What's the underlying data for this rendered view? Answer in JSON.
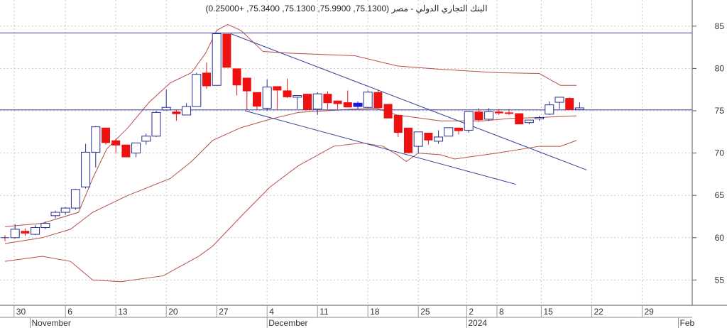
{
  "chart_data": {
    "type": "candlestick",
    "title": "البنك التجاري الدولي - مصر (75.1300, 75.9900, 75.1300, 75.3400, +0.25000)",
    "ylim": [
      52.5,
      87.5
    ],
    "yticks": [
      55,
      60,
      65,
      70,
      75,
      80,
      85
    ],
    "grid": true,
    "day_ticks": [
      {
        "label": "30",
        "x_index": 0.9
      },
      {
        "label": "6",
        "x_index": 6
      },
      {
        "label": "13",
        "x_index": 11
      },
      {
        "label": "20",
        "x_index": 16
      },
      {
        "label": "27",
        "x_index": 21
      },
      {
        "label": "4",
        "x_index": 26
      },
      {
        "label": "11",
        "x_index": 31
      },
      {
        "label": "18",
        "x_index": 36
      },
      {
        "label": "25",
        "x_index": 41
      },
      {
        "label": "2",
        "x_index": 45.8
      },
      {
        "label": "8",
        "x_index": 48.8
      },
      {
        "label": "15",
        "x_index": 53.2
      },
      {
        "label": "22",
        "x_index": 58.2
      },
      {
        "label": "29",
        "x_index": 63.2
      }
    ],
    "month_ticks": [
      {
        "label": "November",
        "x_index": 2.5
      },
      {
        "label": "December",
        "x_index": 26
      },
      {
        "label": "2024",
        "x_index": 45.8
      },
      {
        "label": "Feb",
        "x_index": 66.8
      }
    ],
    "candles": [
      [
        60.0,
        60.3,
        59.6,
        60.0
      ],
      [
        60.0,
        61.6,
        59.9,
        61.0
      ],
      [
        60.8,
        61.1,
        60.2,
        60.5
      ],
      [
        60.4,
        61.5,
        60.3,
        61.2
      ],
      [
        61.2,
        61.9,
        61.0,
        61.7
      ],
      [
        62.6,
        63.2,
        62.3,
        63.0
      ],
      [
        63.0,
        63.6,
        62.7,
        63.5
      ],
      [
        63.5,
        65.8,
        63.3,
        65.7
      ],
      [
        66.0,
        71.1,
        65.8,
        70.1
      ],
      [
        70.1,
        73.2,
        68.3,
        73.1
      ],
      [
        73.0,
        73.0,
        71.0,
        71.2
      ],
      [
        71.5,
        71.7,
        70.0,
        70.9
      ],
      [
        71.0,
        71.0,
        69.5,
        69.5
      ],
      [
        70.0,
        71.2,
        69.5,
        71.2
      ],
      [
        71.4,
        72.3,
        71.0,
        72.0
      ],
      [
        72.0,
        75.0,
        71.9,
        74.8
      ],
      [
        75.1,
        77.5,
        75.0,
        75.4
      ],
      [
        74.9,
        75.1,
        73.8,
        74.6
      ],
      [
        74.5,
        75.9,
        74.5,
        75.5
      ],
      [
        75.5,
        79.5,
        75.5,
        79.3
      ],
      [
        79.5,
        80.7,
        77.6,
        77.9
      ],
      [
        78.0,
        84.1,
        78.0,
        84.1
      ],
      [
        84.1,
        84.1,
        80.1,
        80.1
      ],
      [
        80.0,
        80.0,
        76.8,
        78.0
      ],
      [
        78.9,
        78.9,
        75.1,
        77.3
      ],
      [
        77.2,
        77.2,
        75.1,
        75.5
      ],
      [
        75.3,
        78.7,
        75.0,
        77.8
      ],
      [
        77.9,
        77.9,
        75.2,
        77.4
      ],
      [
        77.4,
        78.8,
        76.5,
        76.6
      ],
      [
        76.6,
        76.8,
        75.2,
        76.8
      ],
      [
        77.0,
        77.0,
        75.1,
        75.1
      ],
      [
        75.2,
        77.2,
        74.5,
        77.0
      ],
      [
        77.0,
        77.3,
        75.2,
        75.9
      ],
      [
        76.2,
        76.2,
        75.2,
        75.8
      ],
      [
        76.0,
        77.4,
        75.4,
        75.4
      ],
      [
        75.5,
        76.1,
        75.2,
        75.9
      ],
      [
        75.4,
        77.4,
        75.3,
        77.2
      ],
      [
        77.2,
        77.5,
        75.3,
        75.3
      ],
      [
        75.8,
        75.8,
        74.1,
        74.1
      ],
      [
        74.5,
        74.5,
        71.9,
        72.4
      ],
      [
        73.0,
        73.0,
        70.0,
        70.0
      ],
      [
        70.8,
        72.5,
        70.0,
        72.5
      ],
      [
        72.4,
        72.4,
        71.0,
        71.5
      ],
      [
        71.4,
        72.7,
        71.1,
        71.9
      ],
      [
        72.0,
        73.0,
        72.0,
        73.0
      ],
      [
        73.0,
        73.0,
        72.2,
        72.6
      ],
      [
        72.7,
        74.9,
        72.4,
        74.9
      ],
      [
        74.9,
        75.3,
        73.7,
        73.9
      ],
      [
        74.0,
        75.3,
        73.8,
        74.9
      ],
      [
        74.9,
        75.2,
        74.5,
        74.7
      ],
      [
        74.8,
        75.2,
        74.5,
        74.7
      ],
      [
        74.7,
        74.7,
        73.4,
        73.4
      ],
      [
        73.6,
        73.9,
        73.4,
        73.9
      ],
      [
        74.1,
        74.4,
        73.8,
        74.2
      ],
      [
        74.6,
        76.1,
        74.5,
        75.7
      ],
      [
        76.0,
        76.6,
        75.2,
        76.6
      ],
      [
        76.5,
        76.6,
        75.1,
        75.1
      ],
      [
        75.13,
        75.99,
        75.13,
        75.34
      ]
    ],
    "candle_fields": [
      "open",
      "high",
      "low",
      "close"
    ],
    "bollinger_upper": [
      [
        0,
        61.3
      ],
      [
        3.7,
        61.7
      ],
      [
        7.3,
        63
      ],
      [
        8.7,
        67
      ],
      [
        10.1,
        70.5
      ],
      [
        12.2,
        73
      ],
      [
        14.3,
        76
      ],
      [
        16.4,
        78.3
      ],
      [
        18.5,
        79.5
      ],
      [
        19.9,
        81.8
      ],
      [
        21,
        84.5
      ],
      [
        22.1,
        85.2
      ],
      [
        23.4,
        84.5
      ],
      [
        25.6,
        82
      ],
      [
        28.4,
        81.8
      ],
      [
        34.7,
        81.5
      ],
      [
        38.9,
        80.3
      ],
      [
        43.2,
        79.9
      ],
      [
        48.8,
        79.5
      ],
      [
        53,
        79.4
      ],
      [
        55.1,
        78
      ],
      [
        56.7,
        78
      ]
    ],
    "bollinger_middle": [
      [
        0,
        59.3
      ],
      [
        3.7,
        60
      ],
      [
        6.5,
        61
      ],
      [
        8.7,
        63
      ],
      [
        12.2,
        65
      ],
      [
        16.4,
        67
      ],
      [
        18.5,
        69
      ],
      [
        20.6,
        71.5
      ],
      [
        23.4,
        73
      ],
      [
        26.3,
        74
      ],
      [
        29.1,
        74.8
      ],
      [
        34.7,
        75.2
      ],
      [
        36.8,
        75.3
      ],
      [
        38.9,
        74.5
      ],
      [
        43.2,
        73.8
      ],
      [
        47.4,
        73.8
      ],
      [
        50.2,
        74.1
      ],
      [
        53,
        74.2
      ],
      [
        56.7,
        74.4
      ]
    ],
    "bollinger_lower": [
      [
        0,
        57.2
      ],
      [
        3.7,
        57.8
      ],
      [
        6.5,
        57.2
      ],
      [
        8.7,
        55
      ],
      [
        11.5,
        54.8
      ],
      [
        15.7,
        55.5
      ],
      [
        19.2,
        57.8
      ],
      [
        20.6,
        59
      ],
      [
        23.4,
        62.5
      ],
      [
        26.3,
        66
      ],
      [
        29.1,
        68.5
      ],
      [
        32.6,
        70.8
      ],
      [
        35.4,
        71.2
      ],
      [
        37.5,
        70.8
      ],
      [
        38.9,
        69.8
      ],
      [
        39.8,
        69
      ],
      [
        41,
        70
      ],
      [
        43.2,
        69.8
      ],
      [
        44.6,
        69.3
      ],
      [
        48.8,
        70
      ],
      [
        53,
        70.8
      ],
      [
        55.1,
        70.8
      ],
      [
        56.7,
        71.5
      ]
    ],
    "horizontal_lines": [
      84.2,
      75.1
    ],
    "trend_lines": [
      {
        "from": [
          22.4,
          84.1
        ],
        "to": [
          57.7,
          68.0
        ]
      },
      {
        "from": [
          23.8,
          75.0
        ],
        "to": [
          50.7,
          66.3
        ]
      }
    ],
    "colors": {
      "up": "#2a2f8f",
      "down": "#ee1111",
      "neutral_fill": "#1a1adf",
      "band": "#b5504a",
      "line": "#3a3f9a",
      "grid": "#c8c8c8"
    }
  }
}
